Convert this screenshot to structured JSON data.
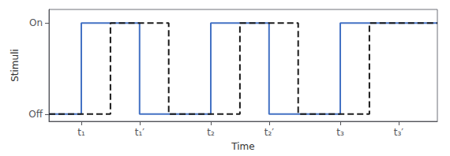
{
  "chart_data": {
    "type": "line",
    "xlabel": "Time",
    "ylabel": "Stimuli",
    "xlim": [
      0.0,
      12.0
    ],
    "ylim": [
      -0.08,
      1.15
    ],
    "xticks": [
      {
        "value": 1.0,
        "label": "t₁"
      },
      {
        "value": 2.8,
        "label": "t₁′"
      },
      {
        "value": 5.0,
        "label": "t₂"
      },
      {
        "value": 6.8,
        "label": "t₂′"
      },
      {
        "value": 9.0,
        "label": "t₃"
      },
      {
        "value": 10.8,
        "label": "t₃′"
      }
    ],
    "yticks": [
      {
        "value": 0,
        "label": "Off"
      },
      {
        "value": 1,
        "label": "On"
      }
    ],
    "grid": false,
    "series": [
      {
        "color": "#4472C4",
        "line_style": "solid",
        "x": [
          0.0,
          1.0,
          1.0,
          2.8,
          2.8,
          5.0,
          5.0,
          6.8,
          6.8,
          9.0,
          9.0,
          10.8,
          10.8,
          12.0
        ],
        "values": [
          0,
          0,
          1,
          1,
          0,
          0,
          1,
          1,
          0,
          0,
          1,
          1,
          1,
          1
        ]
      },
      {
        "color": "#1a1a1a",
        "line_style": "dashed",
        "x": [
          0.0,
          1.9,
          1.9,
          3.7,
          3.7,
          5.9,
          5.9,
          7.7,
          7.7,
          9.9,
          9.9,
          11.7,
          11.7,
          12.0
        ],
        "values": [
          0,
          0,
          1,
          1,
          0,
          0,
          1,
          1,
          0,
          0,
          1,
          1,
          1,
          1
        ]
      }
    ]
  }
}
